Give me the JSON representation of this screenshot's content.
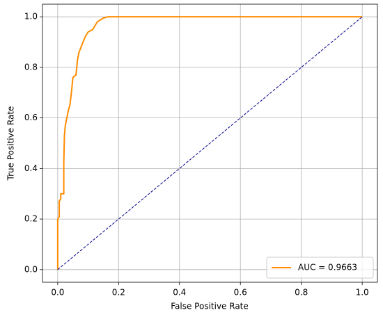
{
  "chart_data": {
    "type": "line",
    "xlabel": "False Positive Rate",
    "ylabel": "True Positive Rate",
    "xlim": [
      -0.05,
      1.05
    ],
    "ylim": [
      -0.05,
      1.05
    ],
    "xticks": [
      {
        "value": 0,
        "label": "0.0"
      },
      0.2,
      0.4,
      0.6,
      0.8,
      {
        "value": 1,
        "label": "1.0"
      }
    ],
    "yticks": [
      {
        "value": 0,
        "label": "0.0"
      },
      0.2,
      0.4,
      0.6,
      0.8,
      {
        "value": 1,
        "label": "1.0"
      }
    ],
    "grid": true,
    "legend": "lower right",
    "series": [
      {
        "name": "AUC = 0.9663",
        "color": "#ff8c00",
        "width": 2,
        "x": [
          0,
          0,
          0.005,
          0.005,
          0.01,
          0.01,
          0.02,
          0.02,
          0.022,
          0.025,
          0.03,
          0.035,
          0.04,
          0.045,
          0.05,
          0.06,
          0.065,
          0.07,
          0.08,
          0.09,
          0.1,
          0.115,
          0.13,
          0.15,
          0.165,
          1.0
        ],
        "values": [
          0,
          0.2,
          0.21,
          0.27,
          0.28,
          0.3,
          0.3,
          0.42,
          0.53,
          0.57,
          0.6,
          0.63,
          0.65,
          0.7,
          0.76,
          0.77,
          0.83,
          0.86,
          0.89,
          0.92,
          0.94,
          0.95,
          0.98,
          0.995,
          1.0,
          1.0
        ]
      },
      {
        "color": "#00008b",
        "width": 1,
        "dashed": true,
        "x": [
          0,
          1
        ],
        "values": [
          0,
          1
        ]
      }
    ]
  }
}
